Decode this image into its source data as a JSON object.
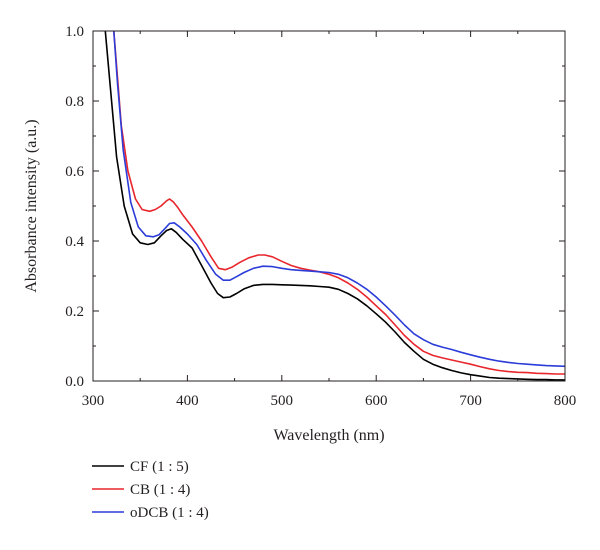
{
  "chart_data": {
    "type": "line",
    "title": "",
    "xlabel": "Wavelength (nm)",
    "ylabel": "Absorbance intensity (a.u.)",
    "xlim": [
      300,
      800
    ],
    "ylim": [
      0.0,
      1.0
    ],
    "xticks": [
      300,
      400,
      500,
      600,
      700,
      800
    ],
    "yticks": [
      0.0,
      0.2,
      0.4,
      0.6,
      0.8,
      1.0
    ],
    "xtick_labels": [
      "300",
      "400",
      "500",
      "600",
      "700",
      "800"
    ],
    "ytick_labels": [
      "0.0",
      "0.2",
      "0.4",
      "0.6",
      "0.8",
      "1.0"
    ],
    "grid": false,
    "legend_position": "bottom-left, below plot",
    "series": [
      {
        "name": "CF (1 : 5)",
        "color": "#000000",
        "x": [
          313,
          318,
          325,
          333,
          342,
          350,
          358,
          365,
          372,
          378,
          383,
          388,
          395,
          405,
          415,
          425,
          432,
          438,
          445,
          452,
          460,
          470,
          480,
          490,
          500,
          510,
          520,
          530,
          540,
          550,
          560,
          570,
          580,
          590,
          600,
          610,
          620,
          630,
          640,
          650,
          660,
          670,
          680,
          690,
          700,
          710,
          720,
          730,
          740,
          750,
          760,
          770,
          780,
          790,
          800
        ],
        "y": [
          1.0,
          0.85,
          0.64,
          0.5,
          0.42,
          0.395,
          0.39,
          0.395,
          0.415,
          0.43,
          0.435,
          0.425,
          0.405,
          0.38,
          0.33,
          0.28,
          0.25,
          0.238,
          0.24,
          0.25,
          0.263,
          0.273,
          0.276,
          0.276,
          0.275,
          0.274,
          0.273,
          0.272,
          0.27,
          0.268,
          0.262,
          0.25,
          0.235,
          0.215,
          0.192,
          0.168,
          0.14,
          0.11,
          0.085,
          0.062,
          0.048,
          0.038,
          0.03,
          0.023,
          0.018,
          0.014,
          0.01,
          0.008,
          0.007,
          0.006,
          0.005,
          0.004,
          0.004,
          0.003,
          0.003
        ]
      },
      {
        "name": "CB (1 : 4)",
        "color": "#e8262c",
        "x": [
          322,
          325,
          330,
          337,
          345,
          352,
          360,
          366,
          372,
          378,
          381,
          385,
          390,
          395,
          405,
          415,
          425,
          433,
          440,
          447,
          455,
          465,
          475,
          482,
          490,
          500,
          510,
          520,
          530,
          540,
          550,
          560,
          570,
          580,
          590,
          600,
          610,
          620,
          630,
          640,
          650,
          660,
          670,
          680,
          690,
          700,
          710,
          720,
          730,
          740,
          750,
          760,
          770,
          780,
          790,
          800
        ],
        "y": [
          1.0,
          0.9,
          0.73,
          0.6,
          0.52,
          0.49,
          0.485,
          0.49,
          0.5,
          0.515,
          0.52,
          0.512,
          0.495,
          0.475,
          0.44,
          0.4,
          0.355,
          0.322,
          0.318,
          0.325,
          0.338,
          0.352,
          0.36,
          0.36,
          0.355,
          0.342,
          0.33,
          0.322,
          0.317,
          0.312,
          0.305,
          0.295,
          0.28,
          0.262,
          0.24,
          0.215,
          0.19,
          0.16,
          0.13,
          0.105,
          0.085,
          0.073,
          0.066,
          0.06,
          0.054,
          0.048,
          0.041,
          0.035,
          0.03,
          0.027,
          0.025,
          0.024,
          0.022,
          0.021,
          0.02,
          0.02
        ]
      },
      {
        "name": "oDCB (1 : 4)",
        "color": "#2b3cd9",
        "x": [
          322,
          326,
          332,
          340,
          348,
          356,
          364,
          370,
          376,
          381,
          386,
          392,
          400,
          410,
          420,
          430,
          438,
          445,
          452,
          460,
          470,
          480,
          490,
          500,
          510,
          520,
          530,
          540,
          550,
          560,
          570,
          580,
          590,
          600,
          610,
          620,
          630,
          640,
          650,
          660,
          670,
          680,
          690,
          700,
          710,
          720,
          730,
          740,
          750,
          760,
          770,
          780,
          790,
          800
        ],
        "y": [
          1.0,
          0.85,
          0.66,
          0.51,
          0.44,
          0.415,
          0.412,
          0.418,
          0.435,
          0.45,
          0.452,
          0.44,
          0.42,
          0.39,
          0.345,
          0.305,
          0.288,
          0.288,
          0.298,
          0.31,
          0.322,
          0.328,
          0.327,
          0.322,
          0.318,
          0.316,
          0.314,
          0.312,
          0.31,
          0.305,
          0.295,
          0.28,
          0.262,
          0.24,
          0.215,
          0.188,
          0.16,
          0.135,
          0.118,
          0.105,
          0.097,
          0.09,
          0.082,
          0.075,
          0.068,
          0.062,
          0.057,
          0.053,
          0.05,
          0.048,
          0.046,
          0.044,
          0.043,
          0.042
        ]
      }
    ]
  }
}
